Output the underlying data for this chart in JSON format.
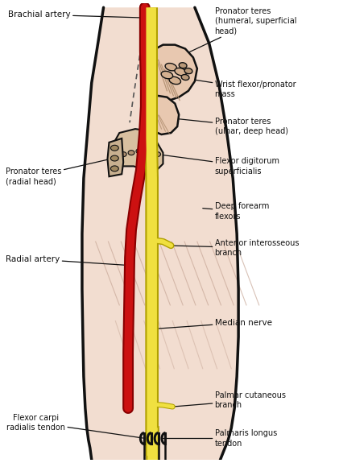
{
  "bg_color": "#ffffff",
  "skin_fill": "#f2ddd0",
  "skin_fill2": "#edddd0",
  "outline_color": "#111111",
  "nerve_color": "#f0e040",
  "nerve_border": "#b0a000",
  "artery_color": "#cc1111",
  "artery_border": "#880000",
  "muscle_fill": "#e8c8b0",
  "muscle_fill2": "#d4b090",
  "muscle_fill3": "#c8a878",
  "annotation_color": "#111111",
  "labels": {
    "brachial_artery": "Brachial artery",
    "pronator_teres_humeral": "Pronator teres\n(humeral, superficial\nhead)",
    "wrist_flexor": "Wrist flexor/pronator\nmass",
    "pronator_teres_ulnar": "Pronator teres\n(ulnar, deep head)",
    "flexor_digitorum": "Flexor digitorum\nsuperficialis",
    "deep_forearm": "Deep forearm\nflexors",
    "pronator_teres_radial": "Pronator teres\n(radial head)",
    "radial_artery": "Radial artery",
    "anterior_interosseous": "Anterior interosseous\nbranch",
    "median_nerve": "Median nerve",
    "palmar_cutaneous": "Palmar cutaneous\nbranch",
    "palmaris_longus": "Palmaris longus\ntendon",
    "flexor_carpi": "Flexor carpi\nradialis tendon"
  },
  "figsize": [
    4.21,
    5.75
  ],
  "dpi": 100
}
